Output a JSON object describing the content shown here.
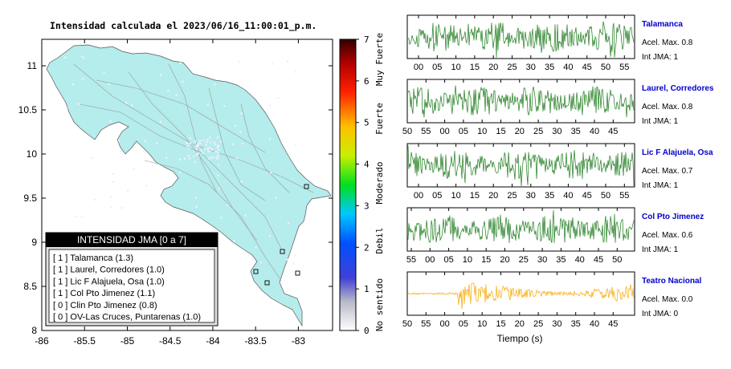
{
  "map": {
    "title": "Intensidad calculada el 2023/06/16_11:00:01_p.m.",
    "x_ticks": [
      "-86",
      "-85.5",
      "-85",
      "-84.5",
      "-84",
      "-83.5",
      "-83"
    ],
    "y_ticks": [
      "11",
      "10.5",
      "10",
      "9.5",
      "9",
      "8.5",
      "8"
    ],
    "xlim": [
      -86,
      -82.6
    ],
    "ylim": [
      8,
      11.3
    ],
    "land_color": "#b5ecec",
    "legend": {
      "title": "INTENSIDAD JMA [0 a 7]",
      "items": [
        "[ 1 ]  Talamanca (1.3)",
        "[ 1 ]  Laurel, Corredores (1.0)",
        "[ 1 ]  Lic F Alajuela, Osa (1.0)",
        "[ 1 ]  Col Pto Jimenez (1.1)",
        "[ 0 ]  Clin Pto Jimenez (0.8)",
        "[ 0 ]  OV-Las Cruces, Puntarenas (1.0)"
      ]
    }
  },
  "colorbar": {
    "ticks": [
      "0",
      "1",
      "2",
      "3",
      "4",
      "5",
      "6",
      "7"
    ],
    "labels": [
      "No sentido",
      "Debil",
      "Moderado",
      "Fuerte",
      "Muy Fuerte"
    ]
  },
  "chart_data": [
    {
      "type": "line",
      "station": "Talamanca",
      "accel_label": "Acel. Max. 0.8",
      "int_label": "Int JMA: 1",
      "ticks": [
        "00",
        "05",
        "10",
        "15",
        "20",
        "25",
        "30",
        "35",
        "40",
        "45",
        "50",
        "55"
      ],
      "color": "#1a7a1a",
      "title_color": "#0000cc"
    },
    {
      "type": "line",
      "station": "Laurel, Corredores",
      "accel_label": "Acel. Max. 0.8",
      "int_label": "Int JMA: 1",
      "ticks": [
        "50",
        "55",
        "00",
        "05",
        "10",
        "15",
        "20",
        "25",
        "30",
        "35",
        "40",
        "45"
      ],
      "color": "#1a7a1a",
      "title_color": "#0000cc"
    },
    {
      "type": "line",
      "station": "Lic F Alajuela, Osa",
      "accel_label": "Acel. Max. 0.7",
      "int_label": "Int JMA: 1",
      "ticks": [
        "00",
        "05",
        "10",
        "15",
        "20",
        "25",
        "30",
        "35",
        "40",
        "45",
        "50",
        "55"
      ],
      "color": "#1a7a1a",
      "title_color": "#0000cc"
    },
    {
      "type": "line",
      "station": "Col Pto Jimenez",
      "accel_label": "Acel. Max. 0.6",
      "int_label": "Int JMA: 1",
      "ticks": [
        "55",
        "00",
        "05",
        "10",
        "15",
        "20",
        "25",
        "30",
        "35",
        "40",
        "45",
        "50"
      ],
      "color": "#1a7a1a",
      "title_color": "#0000cc"
    },
    {
      "type": "line",
      "station": "Teatro Nacional",
      "accel_label": "Acel. Max. 0.0",
      "int_label": "Int JMA: 0",
      "ticks": [
        "50",
        "55",
        "00",
        "05",
        "10",
        "15",
        "20",
        "25",
        "30",
        "35",
        "40",
        "45"
      ],
      "color": "#f5a800",
      "title_color": "#0000cc"
    }
  ],
  "xlabel": "Tiempo (s)"
}
